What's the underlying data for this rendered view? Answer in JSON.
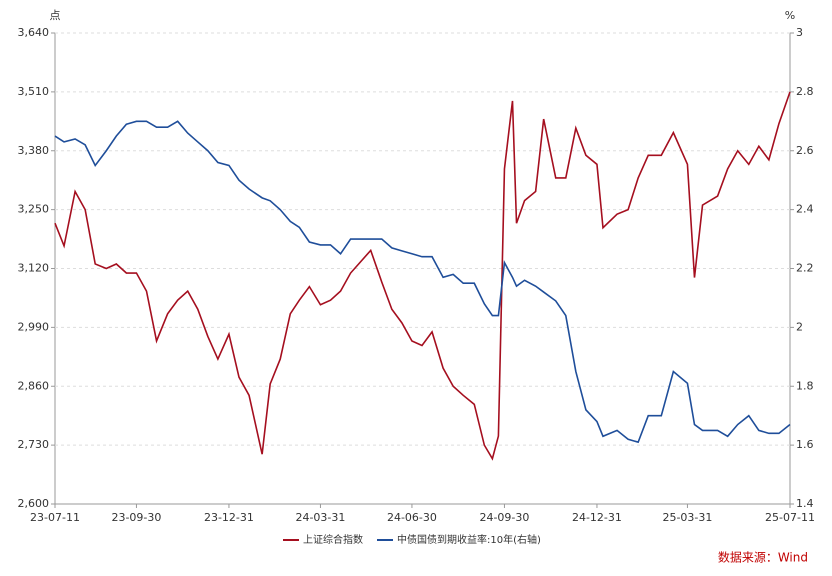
{
  "chart_data": {
    "type": "line",
    "y_unit": "点",
    "y2_unit": "%",
    "source": "数据来源：Wind",
    "x": [
      "23-07-11",
      "23-07-20",
      "23-07-31",
      "23-08-10",
      "23-08-20",
      "23-08-31",
      "23-09-10",
      "23-09-20",
      "23-09-30",
      "23-10-10",
      "23-10-20",
      "23-10-31",
      "23-11-10",
      "23-11-20",
      "23-11-30",
      "23-12-10",
      "23-12-20",
      "23-12-31",
      "24-01-10",
      "24-01-20",
      "24-02-02",
      "24-02-10",
      "24-02-20",
      "24-03-01",
      "24-03-10",
      "24-03-20",
      "24-03-31",
      "24-04-10",
      "24-04-20",
      "24-04-30",
      "24-05-20",
      "24-05-31",
      "24-06-10",
      "24-06-20",
      "24-06-30",
      "24-07-10",
      "24-07-20",
      "24-07-31",
      "24-08-10",
      "24-08-20",
      "24-08-31",
      "24-09-10",
      "24-09-18",
      "24-09-24",
      "24-09-30",
      "24-10-08",
      "24-10-12",
      "24-10-20",
      "24-10-31",
      "24-11-08",
      "24-11-20",
      "24-11-30",
      "24-12-10",
      "24-12-20",
      "24-12-31",
      "25-01-06",
      "25-01-20",
      "25-01-31",
      "25-02-10",
      "25-02-20",
      "25-03-05",
      "25-03-17",
      "25-03-31",
      "25-04-07",
      "25-04-15",
      "25-04-30",
      "25-05-10",
      "25-05-20",
      "25-05-31",
      "25-06-10",
      "25-06-20",
      "25-06-30",
      "25-07-11"
    ],
    "series": [
      {
        "name": "上证综合指数",
        "color": "#a50f1f",
        "axis": "y",
        "values": [
          3220,
          3170,
          3290,
          3250,
          3130,
          3120,
          3130,
          3110,
          3110,
          3070,
          2960,
          3020,
          3050,
          3070,
          3030,
          2970,
          2920,
          2975,
          2880,
          2840,
          2710,
          2865,
          2920,
          3020,
          3050,
          3080,
          3040,
          3050,
          3070,
          3110,
          3160,
          3090,
          3030,
          3000,
          2960,
          2950,
          2980,
          2900,
          2860,
          2840,
          2820,
          2730,
          2700,
          2750,
          3340,
          3490,
          3220,
          3270,
          3290,
          3450,
          3320,
          3320,
          3430,
          3370,
          3350,
          3210,
          3240,
          3250,
          3320,
          3370,
          3370,
          3420,
          3350,
          3100,
          3260,
          3280,
          3340,
          3380,
          3350,
          3390,
          3360,
          3440,
          3510
        ]
      },
      {
        "name": "中债国债到期收益率:10年(右轴)",
        "color": "#1f4e9a",
        "axis": "y2",
        "values": [
          2.65,
          2.63,
          2.64,
          2.62,
          2.55,
          2.6,
          2.65,
          2.69,
          2.7,
          2.7,
          2.68,
          2.68,
          2.7,
          2.66,
          2.63,
          2.6,
          2.56,
          2.55,
          2.5,
          2.47,
          2.44,
          2.43,
          2.4,
          2.36,
          2.34,
          2.29,
          2.28,
          2.28,
          2.25,
          2.3,
          2.3,
          2.3,
          2.27,
          2.26,
          2.25,
          2.24,
          2.24,
          2.17,
          2.18,
          2.15,
          2.15,
          2.08,
          2.04,
          2.04,
          2.22,
          2.17,
          2.14,
          2.16,
          2.14,
          2.12,
          2.09,
          2.04,
          1.85,
          1.72,
          1.68,
          1.63,
          1.65,
          1.62,
          1.61,
          1.7,
          1.7,
          1.85,
          1.81,
          1.67,
          1.65,
          1.65,
          1.63,
          1.67,
          1.7,
          1.65,
          1.64,
          1.64,
          1.67
        ]
      }
    ],
    "xlim": [
      "23-07-11",
      "25-07-11"
    ],
    "xticks": [
      "23-07-11",
      "23-09-30",
      "23-12-31",
      "24-03-31",
      "24-06-30",
      "24-09-30",
      "24-12-31",
      "25-03-31",
      "25-07-11"
    ],
    "ylim": [
      2600,
      3640
    ],
    "yticks": [
      {
        "value": 2600,
        "label": "2,600"
      },
      {
        "value": 2730,
        "label": "2,730"
      },
      {
        "value": 2860,
        "label": "2,860"
      },
      {
        "value": 2990,
        "label": "2,990"
      },
      {
        "value": 3120,
        "label": "3,120"
      },
      {
        "value": 3250,
        "label": "3,250"
      },
      {
        "value": 3380,
        "label": "3,380"
      },
      {
        "value": 3510,
        "label": "3,510"
      },
      {
        "value": 3640,
        "label": "3,640"
      }
    ],
    "y2lim": [
      1.4,
      3
    ],
    "y2ticks": [
      1.4,
      1.6,
      1.8,
      2,
      2.2,
      2.4,
      2.6,
      2.8,
      3
    ],
    "grid": true,
    "legend": "bottom"
  }
}
